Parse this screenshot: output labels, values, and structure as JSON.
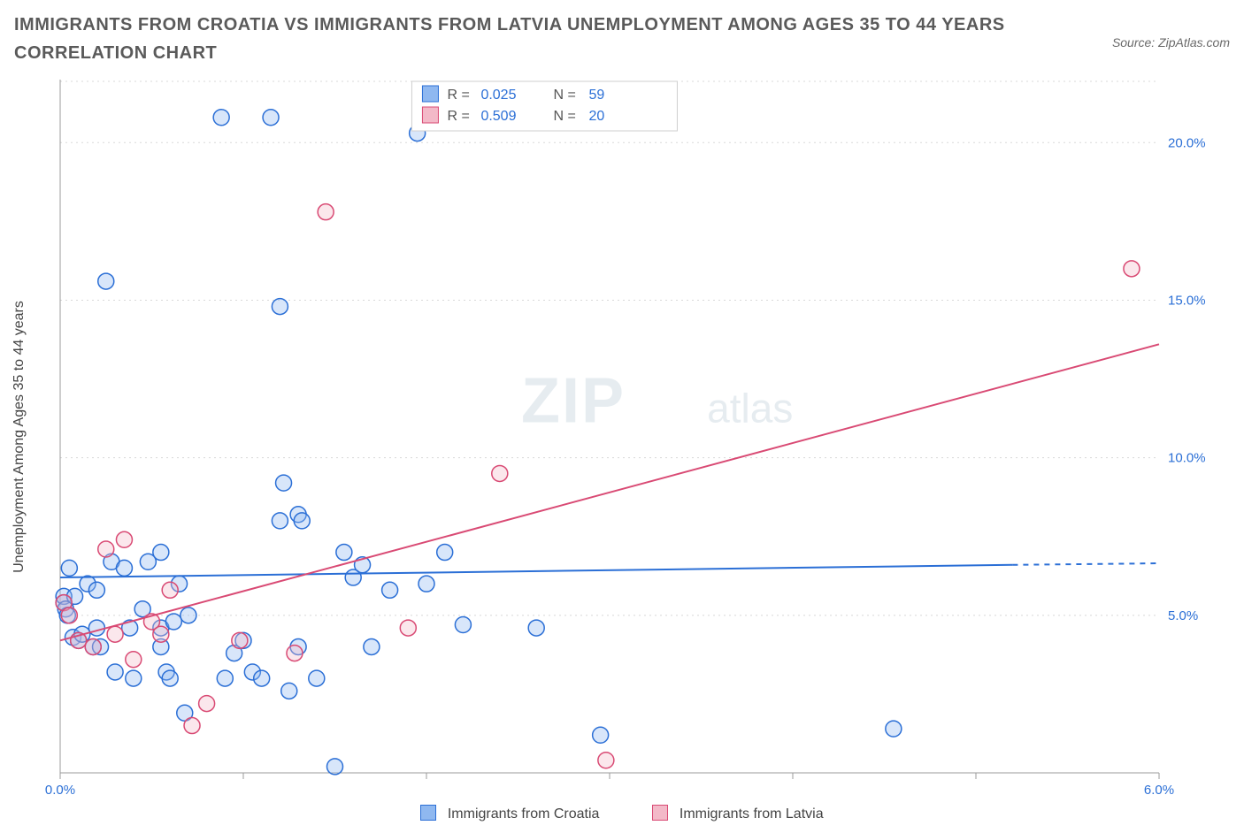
{
  "title": "IMMIGRANTS FROM CROATIA VS IMMIGRANTS FROM LATVIA UNEMPLOYMENT AMONG AGES 35 TO 44 YEARS CORRELATION CHART",
  "source_label": "Source: ZipAtlas.com",
  "y_axis_label": "Unemployment Among Ages 35 to 44 years",
  "watermark_main": "ZIP",
  "watermark_sub": "atlas",
  "chart": {
    "type": "scatter",
    "background_color": "#ffffff",
    "grid_color": "#d8d8d8",
    "axis_color": "#9b9b9b",
    "tick_label_color": "#2b6fd6",
    "xlim": [
      0.0,
      6.0
    ],
    "ylim": [
      0.0,
      22.0
    ],
    "x_ticks": [
      0.0,
      1.0,
      2.0,
      3.0,
      4.0,
      5.0,
      6.0
    ],
    "x_tick_labels": [
      "0.0%",
      "",
      "",
      "",
      "",
      "",
      "6.0%"
    ],
    "y_ticks": [
      5.0,
      10.0,
      15.0,
      20.0
    ],
    "y_tick_labels": [
      "5.0%",
      "10.0%",
      "15.0%",
      "20.0%"
    ],
    "marker_radius": 9,
    "marker_stroke_width": 1.5,
    "marker_fill_opacity": 0.35,
    "trend_line_width": 2
  },
  "series": [
    {
      "name": "Immigrants from Croatia",
      "color_fill": "#8fb8f0",
      "color_stroke": "#2b6fd6",
      "R": "0.025",
      "N": "59",
      "trend": {
        "x1": 0.0,
        "y1": 6.2,
        "x2": 5.2,
        "y2": 6.6,
        "dash_after_x": 5.2,
        "x2_dash": 6.0,
        "y2_dash": 6.65
      },
      "points": [
        [
          0.02,
          5.4
        ],
        [
          0.02,
          5.6
        ],
        [
          0.03,
          5.2
        ],
        [
          0.04,
          5.0
        ],
        [
          0.05,
          6.5
        ],
        [
          0.07,
          4.3
        ],
        [
          0.08,
          5.6
        ],
        [
          0.1,
          4.2
        ],
        [
          0.12,
          4.4
        ],
        [
          0.15,
          6.0
        ],
        [
          0.18,
          4.0
        ],
        [
          0.2,
          4.6
        ],
        [
          0.2,
          5.8
        ],
        [
          0.22,
          4.0
        ],
        [
          0.25,
          15.6
        ],
        [
          0.28,
          6.7
        ],
        [
          0.3,
          3.2
        ],
        [
          0.35,
          6.5
        ],
        [
          0.38,
          4.6
        ],
        [
          0.4,
          3.0
        ],
        [
          0.45,
          5.2
        ],
        [
          0.48,
          6.7
        ],
        [
          0.55,
          7.0
        ],
        [
          0.55,
          4.6
        ],
        [
          0.58,
          3.2
        ],
        [
          0.6,
          3.0
        ],
        [
          0.62,
          4.8
        ],
        [
          0.65,
          6.0
        ],
        [
          0.68,
          1.9
        ],
        [
          0.7,
          5.0
        ],
        [
          0.88,
          20.8
        ],
        [
          0.9,
          3.0
        ],
        [
          0.95,
          3.8
        ],
        [
          1.0,
          4.2
        ],
        [
          1.05,
          3.2
        ],
        [
          1.1,
          3.0
        ],
        [
          1.15,
          20.8
        ],
        [
          1.2,
          14.8
        ],
        [
          1.2,
          8.0
        ],
        [
          1.22,
          9.2
        ],
        [
          1.25,
          2.6
        ],
        [
          1.3,
          8.2
        ],
        [
          1.3,
          4.0
        ],
        [
          1.32,
          8.0
        ],
        [
          1.4,
          3.0
        ],
        [
          1.5,
          0.2
        ],
        [
          1.55,
          7.0
        ],
        [
          1.6,
          6.2
        ],
        [
          1.65,
          6.6
        ],
        [
          1.7,
          4.0
        ],
        [
          1.8,
          5.8
        ],
        [
          1.95,
          20.3
        ],
        [
          2.0,
          6.0
        ],
        [
          2.1,
          7.0
        ],
        [
          2.2,
          4.7
        ],
        [
          2.6,
          4.6
        ],
        [
          2.95,
          1.2
        ],
        [
          4.55,
          1.4
        ],
        [
          0.55,
          4.0
        ]
      ]
    },
    {
      "name": "Immigrants from Latvia",
      "color_fill": "#f3b9c8",
      "color_stroke": "#d94a74",
      "R": "0.509",
      "N": "20",
      "trend": {
        "x1": 0.0,
        "y1": 4.2,
        "x2": 6.0,
        "y2": 13.6
      },
      "points": [
        [
          0.02,
          5.4
        ],
        [
          0.05,
          5.0
        ],
        [
          0.1,
          4.2
        ],
        [
          0.18,
          4.0
        ],
        [
          0.25,
          7.1
        ],
        [
          0.3,
          4.4
        ],
        [
          0.35,
          7.4
        ],
        [
          0.4,
          3.6
        ],
        [
          0.5,
          4.8
        ],
        [
          0.55,
          4.4
        ],
        [
          0.6,
          5.8
        ],
        [
          0.72,
          1.5
        ],
        [
          0.8,
          2.2
        ],
        [
          0.98,
          4.2
        ],
        [
          1.28,
          3.8
        ],
        [
          1.45,
          17.8
        ],
        [
          1.9,
          4.6
        ],
        [
          2.4,
          9.5
        ],
        [
          2.98,
          0.4
        ],
        [
          5.85,
          16.0
        ]
      ]
    }
  ],
  "legend_box": {
    "R_label": "R =",
    "N_label": "N ="
  },
  "bottom_legend": [
    {
      "label": "Immigrants from Croatia",
      "fill": "#8fb8f0",
      "stroke": "#2b6fd6"
    },
    {
      "label": "Immigrants from Latvia",
      "fill": "#f3b9c8",
      "stroke": "#d94a74"
    }
  ]
}
